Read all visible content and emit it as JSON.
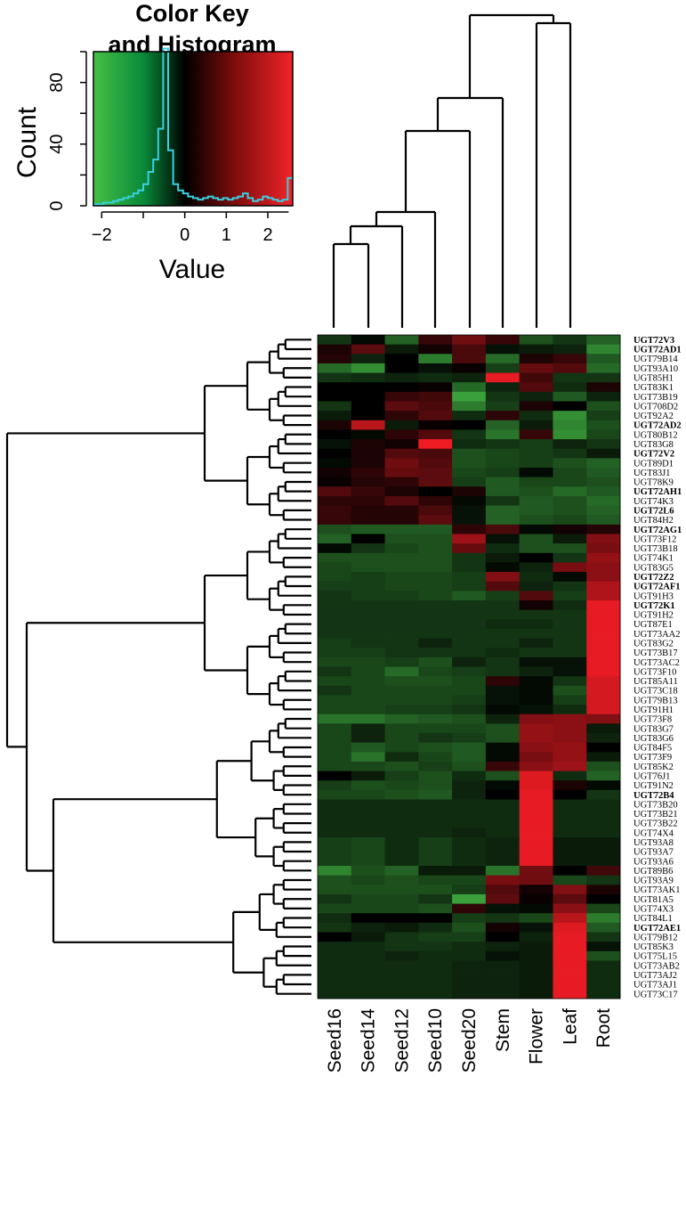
{
  "color_key": {
    "title_line1": "Color Key",
    "title_line2": "and Histogram",
    "ylabel": "Count",
    "xlabel": "Value",
    "y_ticks": [
      "0",
      "40",
      "80"
    ],
    "x_ticks": [
      "−2",
      "0",
      "1",
      "2"
    ],
    "x_tick_values": [
      -2,
      0,
      1,
      2
    ],
    "y_tick_values": [
      0,
      40,
      80
    ],
    "x_range": [
      -2.2,
      2.6
    ],
    "y_range": [
      0,
      100
    ],
    "colors": {
      "low": "#3fbf3f",
      "mid": "#000000",
      "high": "#f01c24",
      "histogram": "#3ad0e0"
    },
    "histogram": [
      1,
      1,
      2,
      2,
      3,
      4,
      5,
      6,
      8,
      10,
      14,
      22,
      30,
      50,
      102,
      36,
      14,
      10,
      8,
      6,
      5,
      4,
      5,
      6,
      5,
      4,
      5,
      4,
      5,
      6,
      8,
      5,
      3,
      4,
      6,
      5,
      4,
      3,
      4,
      18
    ]
  },
  "chart_data": {
    "type": "heatmap",
    "title": "Color Key and Histogram",
    "xlabel": "",
    "ylabel": "",
    "value_range": [
      -2.2,
      2.6
    ],
    "columns": [
      "Seed16",
      "Seed14",
      "Seed12",
      "Seed10",
      "Seed20",
      "Stem",
      "Flower",
      "Leaf",
      "Root"
    ],
    "rows": [
      {
        "gene": "UGT72V3",
        "bold": true,
        "values": [
          -0.6,
          -0.1,
          -1.1,
          0.6,
          1.2,
          0.6,
          -0.9,
          -0.6,
          -1.1
        ]
      },
      {
        "gene": "UGT72AD1",
        "bold": true,
        "values": [
          0.3,
          1.0,
          -0.3,
          0.2,
          0.8,
          -0.2,
          -0.3,
          -0.4,
          -1.5
        ]
      },
      {
        "gene": "UGT79B14",
        "bold": false,
        "values": [
          0.4,
          -0.4,
          0.0,
          -1.4,
          0.8,
          -1.2,
          0.3,
          0.6,
          -1.0
        ]
      },
      {
        "gene": "UGT93A10",
        "bold": false,
        "values": [
          -1.2,
          -1.6,
          0.0,
          -0.2,
          0.1,
          -0.7,
          1.1,
          0.9,
          -1.2
        ]
      },
      {
        "gene": "UGT85H1",
        "bold": false,
        "values": [
          -0.6,
          -0.5,
          -0.4,
          -0.5,
          -0.4,
          2.5,
          0.7,
          -0.6,
          -0.6
        ]
      },
      {
        "gene": "UGT83K1",
        "bold": false,
        "values": [
          0.0,
          0.0,
          0.0,
          0.1,
          -1.2,
          -0.4,
          0.9,
          -0.5,
          0.3
        ]
      },
      {
        "gene": "UGT73B19",
        "bold": false,
        "values": [
          0.0,
          0.0,
          0.6,
          0.7,
          -1.8,
          -0.6,
          -0.4,
          -1.0,
          -0.4
        ]
      },
      {
        "gene": "UGT708D2",
        "bold": false,
        "values": [
          -0.6,
          0.0,
          1.0,
          0.8,
          -1.4,
          -0.7,
          0.3,
          0.0,
          -0.9
        ]
      },
      {
        "gene": "UGT92A2",
        "bold": false,
        "values": [
          -0.3,
          0.0,
          0.5,
          0.9,
          -0.5,
          0.5,
          -0.5,
          -1.6,
          -0.7
        ]
      },
      {
        "gene": "UGT72AD2",
        "bold": true,
        "values": [
          0.3,
          2.0,
          -0.3,
          0.1,
          0.0,
          -1.1,
          -0.3,
          -1.5,
          -0.9
        ]
      },
      {
        "gene": "UGT80B12",
        "bold": false,
        "values": [
          0.0,
          -0.1,
          0.5,
          0.9,
          -0.6,
          -1.3,
          0.6,
          -1.6,
          -0.8
        ]
      },
      {
        "gene": "UGT83G8",
        "bold": false,
        "values": [
          -0.2,
          0.3,
          0.2,
          2.6,
          -0.5,
          -0.6,
          -0.7,
          -0.4,
          -0.6
        ]
      },
      {
        "gene": "UGT72V2",
        "bold": true,
        "values": [
          0.0,
          0.3,
          0.9,
          0.8,
          -0.9,
          -0.8,
          -0.7,
          -0.6,
          -0.3
        ]
      },
      {
        "gene": "UGT89D1",
        "bold": false,
        "values": [
          -0.1,
          0.3,
          1.2,
          0.9,
          -0.9,
          -0.8,
          -0.7,
          -0.9,
          -1.1
        ]
      },
      {
        "gene": "UGT83J1",
        "bold": false,
        "values": [
          0.2,
          0.5,
          1.1,
          1.0,
          -0.8,
          -0.7,
          -0.1,
          -0.8,
          -1.0
        ]
      },
      {
        "gene": "UGT78K9",
        "bold": false,
        "values": [
          0.1,
          0.4,
          0.5,
          1.0,
          -0.7,
          -1.0,
          -0.8,
          -0.8,
          -0.9
        ]
      },
      {
        "gene": "UGT72AH1",
        "bold": true,
        "values": [
          0.9,
          0.6,
          0.3,
          0.0,
          0.3,
          -1.0,
          -0.9,
          -1.2,
          -1.0
        ]
      },
      {
        "gene": "UGT74K3",
        "bold": false,
        "values": [
          0.5,
          0.5,
          0.9,
          0.5,
          -0.1,
          -0.6,
          -1.0,
          -0.9,
          -1.2
        ]
      },
      {
        "gene": "UGT72L6",
        "bold": true,
        "values": [
          0.6,
          0.4,
          0.4,
          0.8,
          -0.2,
          -1.1,
          -1.0,
          -0.9,
          -1.1
        ]
      },
      {
        "gene": "UGT84H2",
        "bold": false,
        "values": [
          0.6,
          0.4,
          0.4,
          1.0,
          -0.2,
          -1.1,
          -0.9,
          -0.8,
          -1.0
        ]
      },
      {
        "gene": "UGT72AG1",
        "bold": true,
        "values": [
          -0.9,
          -1.0,
          -1.0,
          -1.0,
          0.5,
          0.8,
          -0.1,
          0.2,
          0.4
        ]
      },
      {
        "gene": "UGT73F12",
        "bold": false,
        "values": [
          -1.1,
          0.0,
          -0.9,
          -0.9,
          1.7,
          -0.2,
          -0.9,
          -0.3,
          1.4
        ]
      },
      {
        "gene": "UGT73B18",
        "bold": false,
        "values": [
          -0.1,
          -0.6,
          -0.8,
          -0.9,
          1.1,
          -0.5,
          -0.9,
          -0.9,
          1.3
        ]
      },
      {
        "gene": "UGT74K1",
        "bold": false,
        "values": [
          -0.9,
          -0.9,
          -0.9,
          -0.9,
          -0.6,
          -0.3,
          0.0,
          -0.6,
          1.6
        ]
      },
      {
        "gene": "UGT83G5",
        "bold": false,
        "values": [
          -0.8,
          -0.9,
          -0.9,
          -0.9,
          -0.6,
          -0.1,
          -0.4,
          1.3,
          1.5
        ]
      },
      {
        "gene": "UGT72Z2",
        "bold": true,
        "values": [
          -0.8,
          -0.7,
          -0.8,
          -0.8,
          -0.7,
          1.4,
          -0.5,
          -0.1,
          1.5
        ]
      },
      {
        "gene": "UGT72AF1",
        "bold": true,
        "values": [
          -0.7,
          -0.7,
          -0.8,
          -0.8,
          -0.7,
          0.9,
          -0.4,
          -0.6,
          1.9
        ]
      },
      {
        "gene": "UGT91H3",
        "bold": false,
        "values": [
          -0.6,
          -0.7,
          -0.7,
          -0.8,
          -1.0,
          -0.7,
          0.9,
          -0.7,
          1.9
        ]
      },
      {
        "gene": "UGT72K1",
        "bold": true,
        "values": [
          -0.6,
          -0.6,
          -0.6,
          -0.6,
          -0.6,
          -0.6,
          0.2,
          -0.5,
          2.5
        ]
      },
      {
        "gene": "UGT91H2",
        "bold": false,
        "values": [
          -0.6,
          -0.6,
          -0.6,
          -0.6,
          -0.6,
          -0.6,
          -0.6,
          -0.6,
          2.5
        ]
      },
      {
        "gene": "UGT87E1",
        "bold": false,
        "values": [
          -0.6,
          -0.6,
          -0.6,
          -0.6,
          -0.6,
          -0.5,
          -0.5,
          -0.6,
          2.5
        ]
      },
      {
        "gene": "UGT73AA2",
        "bold": false,
        "values": [
          -0.6,
          -0.6,
          -0.6,
          -0.6,
          -0.6,
          -0.6,
          -0.6,
          -0.6,
          2.5
        ]
      },
      {
        "gene": "UGT83G2",
        "bold": false,
        "values": [
          -0.7,
          -0.6,
          -0.6,
          -0.4,
          -0.6,
          -0.6,
          -0.4,
          -0.6,
          2.5
        ]
      },
      {
        "gene": "UGT73B17",
        "bold": false,
        "values": [
          -0.7,
          -0.7,
          -0.6,
          -0.6,
          -0.6,
          -0.5,
          -0.6,
          -0.6,
          2.5
        ]
      },
      {
        "gene": "UGT73AC2",
        "bold": false,
        "values": [
          -0.8,
          -0.8,
          -0.7,
          -0.9,
          -0.4,
          -0.6,
          -0.2,
          -0.2,
          2.5
        ]
      },
      {
        "gene": "UGT73F10",
        "bold": false,
        "values": [
          -0.6,
          -0.8,
          -1.2,
          -0.8,
          -0.7,
          -0.6,
          -0.4,
          -0.2,
          2.5
        ]
      },
      {
        "gene": "UGT85A11",
        "bold": false,
        "values": [
          -0.8,
          -0.8,
          -0.9,
          -0.9,
          -0.8,
          0.5,
          -0.1,
          -0.6,
          2.3
        ]
      },
      {
        "gene": "UGT73C18",
        "bold": false,
        "values": [
          -0.6,
          -0.8,
          -0.8,
          -0.8,
          -0.8,
          -0.2,
          -0.1,
          -0.9,
          2.3
        ]
      },
      {
        "gene": "UGT79B13",
        "bold": false,
        "values": [
          -0.8,
          -0.8,
          -0.8,
          -0.8,
          -0.7,
          -0.2,
          -0.1,
          -0.7,
          2.3
        ]
      },
      {
        "gene": "UGT91H1",
        "bold": false,
        "values": [
          -0.8,
          -0.8,
          -0.7,
          -0.7,
          -0.6,
          -0.1,
          -0.2,
          -0.5,
          2.3
        ]
      },
      {
        "gene": "UGT73F8",
        "bold": false,
        "values": [
          -1.3,
          -1.3,
          -1.1,
          -1.0,
          -0.9,
          -0.4,
          1.4,
          1.5,
          1.4
        ]
      },
      {
        "gene": "UGT83G7",
        "bold": false,
        "values": [
          -0.8,
          -0.4,
          -0.8,
          -0.8,
          -0.8,
          -0.9,
          1.6,
          1.5,
          -0.3
        ]
      },
      {
        "gene": "UGT83G6",
        "bold": false,
        "values": [
          -0.8,
          -0.4,
          -0.8,
          -0.6,
          -0.7,
          -0.9,
          1.6,
          1.5,
          -0.4
        ]
      },
      {
        "gene": "UGT84F5",
        "bold": false,
        "values": [
          -0.8,
          -1.0,
          -0.8,
          -0.9,
          -1.0,
          -0.1,
          1.5,
          1.6,
          0.0
        ]
      },
      {
        "gene": "UGT73F9",
        "bold": false,
        "values": [
          -0.8,
          -1.3,
          -0.5,
          -0.8,
          -1.0,
          -0.1,
          1.3,
          1.6,
          -0.3
        ]
      },
      {
        "gene": "UGT85K2",
        "bold": false,
        "values": [
          -0.8,
          -0.8,
          -0.9,
          -0.7,
          -0.9,
          0.6,
          1.5,
          1.7,
          -0.9
        ]
      },
      {
        "gene": "UGT76J1",
        "bold": false,
        "values": [
          0.0,
          -0.3,
          -0.7,
          -0.9,
          -0.5,
          -0.9,
          2.4,
          -0.5,
          -1.1
        ]
      },
      {
        "gene": "UGT91N2",
        "bold": false,
        "values": [
          -0.7,
          -0.9,
          -0.8,
          -0.9,
          -0.4,
          -0.1,
          2.4,
          0.3,
          -0.1
        ]
      },
      {
        "gene": "UGT72B4",
        "bold": true,
        "values": [
          -0.8,
          -0.8,
          -0.9,
          -1.0,
          -0.4,
          0.0,
          2.5,
          0.0,
          -0.6
        ]
      },
      {
        "gene": "UGT73B20",
        "bold": false,
        "values": [
          -0.5,
          -0.5,
          -0.5,
          -0.5,
          -0.5,
          -0.5,
          2.5,
          -0.5,
          -0.5
        ]
      },
      {
        "gene": "UGT73B21",
        "bold": false,
        "values": [
          -0.5,
          -0.5,
          -0.5,
          -0.5,
          -0.5,
          -0.5,
          2.5,
          -0.5,
          -0.5
        ]
      },
      {
        "gene": "UGT73B22",
        "bold": false,
        "values": [
          -0.5,
          -0.5,
          -0.5,
          -0.5,
          -0.5,
          -0.5,
          2.5,
          -0.5,
          -0.5
        ]
      },
      {
        "gene": "UGT74X4",
        "bold": false,
        "values": [
          -0.5,
          -0.5,
          -0.5,
          -0.5,
          -0.4,
          -0.5,
          2.5,
          -0.5,
          -0.5
        ]
      },
      {
        "gene": "UGT93A8",
        "bold": false,
        "values": [
          -0.7,
          -0.8,
          -0.5,
          -0.7,
          -0.5,
          -0.4,
          2.5,
          -0.3,
          -0.3
        ]
      },
      {
        "gene": "UGT93A7",
        "bold": false,
        "values": [
          -0.7,
          -0.8,
          -0.5,
          -0.7,
          -0.5,
          -0.4,
          2.5,
          -0.3,
          -0.3
        ]
      },
      {
        "gene": "UGT93A6",
        "bold": false,
        "values": [
          -0.7,
          -0.8,
          -0.5,
          -0.7,
          -0.5,
          -0.4,
          2.5,
          -0.3,
          -0.3
        ]
      },
      {
        "gene": "UGT89B6",
        "bold": false,
        "values": [
          -1.5,
          -0.9,
          -1.1,
          -0.3,
          -0.3,
          -1.3,
          1.2,
          0.0,
          0.7
        ]
      },
      {
        "gene": "UGT93A9",
        "bold": false,
        "values": [
          -0.9,
          -0.8,
          -0.9,
          -0.8,
          -0.8,
          1.3,
          1.2,
          -0.8,
          -0.6
        ]
      },
      {
        "gene": "UGT73AK1",
        "bold": false,
        "values": [
          -0.9,
          -0.9,
          -0.9,
          -0.9,
          -0.7,
          0.9,
          0.2,
          1.4,
          0.3
        ]
      },
      {
        "gene": "UGT81A5",
        "bold": false,
        "values": [
          -0.6,
          -0.8,
          -0.8,
          -0.6,
          -1.8,
          1.0,
          0.1,
          1.0,
          0.0
        ]
      },
      {
        "gene": "UGT74X3",
        "bold": false,
        "values": [
          -0.8,
          -0.8,
          -0.8,
          -0.9,
          0.5,
          -0.2,
          -0.1,
          1.5,
          -0.8
        ]
      },
      {
        "gene": "UGT84L1",
        "bold": false,
        "values": [
          -0.5,
          0.0,
          0.0,
          0.0,
          -0.7,
          -0.6,
          -0.8,
          2.0,
          -1.4
        ]
      },
      {
        "gene": "UGT72AE1",
        "bold": true,
        "values": [
          -0.6,
          -0.4,
          -0.3,
          -0.5,
          -0.9,
          0.2,
          -0.2,
          2.4,
          -1.0
        ]
      },
      {
        "gene": "UGT79B12",
        "bold": false,
        "values": [
          0.0,
          -0.3,
          -0.6,
          -0.7,
          -0.7,
          0.0,
          -0.4,
          2.5,
          -0.6
        ]
      },
      {
        "gene": "UGT85K3",
        "bold": false,
        "values": [
          -0.5,
          -0.5,
          -0.6,
          -0.6,
          -0.5,
          -0.4,
          -0.3,
          2.5,
          -0.2
        ]
      },
      {
        "gene": "UGT75L15",
        "bold": false,
        "values": [
          -0.5,
          -0.5,
          -0.4,
          -0.5,
          -0.5,
          -0.2,
          -0.3,
          2.5,
          -0.9
        ]
      },
      {
        "gene": "UGT73AB2",
        "bold": false,
        "values": [
          -0.5,
          -0.5,
          -0.5,
          -0.5,
          -0.4,
          -0.4,
          -0.3,
          2.5,
          -0.5
        ]
      },
      {
        "gene": "UGT73AJ2",
        "bold": false,
        "values": [
          -0.5,
          -0.5,
          -0.5,
          -0.5,
          -0.4,
          -0.4,
          -0.3,
          2.5,
          -0.5
        ]
      },
      {
        "gene": "UGT73AJ1",
        "bold": false,
        "values": [
          -0.5,
          -0.5,
          -0.5,
          -0.5,
          -0.4,
          -0.4,
          -0.3,
          2.5,
          -0.5
        ]
      },
      {
        "gene": "UGT73C17",
        "bold": false,
        "values": [
          -0.5,
          -0.5,
          -0.5,
          -0.5,
          -0.4,
          -0.4,
          -0.3,
          2.5,
          -0.5
        ]
      }
    ]
  }
}
